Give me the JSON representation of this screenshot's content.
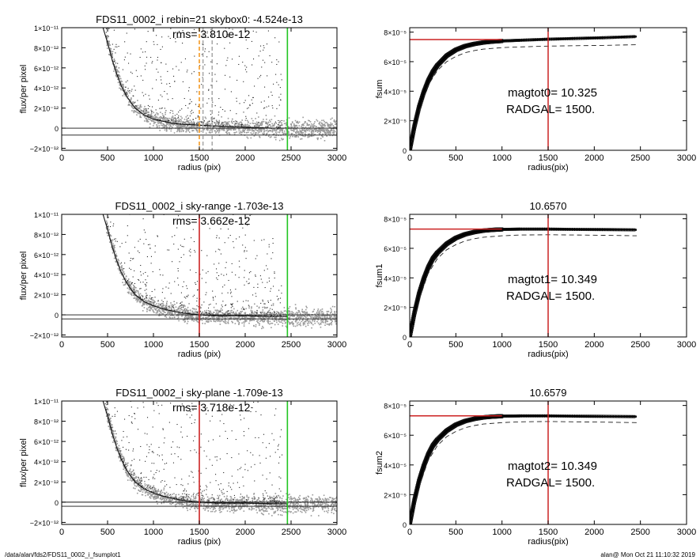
{
  "footer": {
    "path": "/data/alan/fds2/FDS11_0002_i_fsumplot1",
    "user_date": "alan@  Mon Oct 21 11:10:32 2019"
  },
  "chart_data": [
    {
      "type": "scatter",
      "title": "FDS11_0002_i rebin=21    skybox0: -4.524e-13",
      "annotation": "rms= 3.810e-12",
      "xlabel": "radius (pix)",
      "ylabel": "flux/per pixel",
      "xlim": [
        0,
        3000
      ],
      "ylim": [
        -2.2e-12,
        1e-11
      ],
      "x_ticks": [
        0,
        500,
        1000,
        1500,
        2000,
        2500,
        3000
      ],
      "y_tick_labels": [
        {
          "v": 1e-11,
          "t": "1×10⁻¹¹"
        },
        {
          "v": 8e-12,
          "t": "8×10⁻¹²"
        },
        {
          "v": 6e-12,
          "t": "6×10⁻¹²"
        },
        {
          "v": 4e-12,
          "t": "4×10⁻¹²"
        },
        {
          "v": 2e-12,
          "t": "2×10⁻¹²"
        },
        {
          "v": 0,
          "t": "0"
        },
        {
          "v": -2e-12,
          "t": "−2×10⁻¹²"
        }
      ],
      "profile_curve": {
        "x": [
          0,
          450,
          500,
          550,
          600,
          650,
          700,
          750,
          800,
          900,
          1000,
          1100,
          1200,
          1300,
          1500,
          1700,
          2000,
          2300,
          2460
        ],
        "y": [
          1e-11,
          1e-11,
          8.5e-12,
          6.8e-12,
          5.4e-12,
          4.2e-12,
          3.3e-12,
          2.6e-12,
          2e-12,
          1.3e-12,
          9e-13,
          7e-13,
          5e-13,
          4e-13,
          3e-13,
          2e-13,
          1e-13,
          0,
          0
        ]
      },
      "sky_levels": [
        0,
        -4.524e-13
      ],
      "vertical_lines": [
        {
          "x": 1500,
          "color": "#f59a23",
          "style": "dashed"
        },
        {
          "x": 1540,
          "color": "#aaaaaa",
          "style": "dashed"
        },
        {
          "x": 1640,
          "color": "#aaaaaa",
          "style": "dashed"
        },
        {
          "x": 2460,
          "color": "#21c521",
          "style": "solid"
        }
      ]
    },
    {
      "type": "line",
      "title": "",
      "xlabel": "radius(pix)",
      "ylabel": "fsum",
      "xlim": [
        0,
        3000
      ],
      "ylim": [
        0,
        8.3e-05
      ],
      "x_ticks": [
        0,
        500,
        1000,
        1500,
        2000,
        2500,
        3000
      ],
      "y_tick_labels": [
        {
          "v": 8e-05,
          "t": "8×10⁻⁵"
        },
        {
          "v": 6e-05,
          "t": "6×10⁻⁵"
        },
        {
          "v": 4e-05,
          "t": "4×10⁻⁵"
        },
        {
          "v": 2e-05,
          "t": "2×10⁻⁵"
        },
        {
          "v": 0,
          "t": "0"
        }
      ],
      "annotations": [
        "magtot0=  10.325",
        "RADGAL=   1500."
      ],
      "hline": {
        "y": 7.5e-05,
        "x_end": 1000,
        "color": "#cc2222"
      },
      "vline": {
        "x": 1500,
        "color": "#cc2222"
      },
      "curve": {
        "x": [
          0,
          50,
          100,
          150,
          200,
          250,
          300,
          400,
          500,
          600,
          700,
          800,
          900,
          1000,
          1200,
          1500,
          1800,
          2100,
          2460
        ],
        "y": [
          0,
          1.6e-05,
          2.9e-05,
          3.9e-05,
          4.7e-05,
          5.3e-05,
          5.75e-05,
          6.4e-05,
          6.8e-05,
          7.05e-05,
          7.2e-05,
          7.3e-05,
          7.36e-05,
          7.4e-05,
          7.45e-05,
          7.52e-05,
          7.57e-05,
          7.62e-05,
          7.7e-05
        ]
      },
      "dashed": {
        "x": [
          0,
          100,
          200,
          300,
          400,
          500,
          600,
          700,
          800,
          1000,
          1200,
          1500,
          1800,
          2100,
          2460
        ],
        "y": [
          0,
          2.6e-05,
          4.4e-05,
          5.4e-05,
          6e-05,
          6.35e-05,
          6.6e-05,
          6.75e-05,
          6.85e-05,
          6.95e-05,
          7e-05,
          7.05e-05,
          7.08e-05,
          7.1e-05,
          7.15e-05
        ]
      }
    },
    {
      "type": "scatter",
      "title": "FDS11_0002_i sky-range -1.703e-13",
      "annotation": "rms= 3.662e-12",
      "xlabel": "radius (pix)",
      "ylabel": "flux/per pixel",
      "xlim": [
        0,
        3000
      ],
      "ylim": [
        -2.2e-12,
        1e-11
      ],
      "x_ticks": [
        0,
        500,
        1000,
        1500,
        2000,
        2500,
        3000
      ],
      "y_tick_labels": [
        {
          "v": 1e-11,
          "t": "1×10⁻¹¹"
        },
        {
          "v": 8e-12,
          "t": "8×10⁻¹²"
        },
        {
          "v": 6e-12,
          "t": "6×10⁻¹²"
        },
        {
          "v": 4e-12,
          "t": "4×10⁻¹²"
        },
        {
          "v": 2e-12,
          "t": "2×10⁻¹²"
        },
        {
          "v": 0,
          "t": "0"
        },
        {
          "v": -2e-12,
          "t": "−2×10⁻¹²"
        }
      ],
      "profile_curve": {
        "x": [
          0,
          450,
          500,
          550,
          600,
          650,
          700,
          750,
          800,
          900,
          1000,
          1100,
          1200,
          1300,
          1500,
          1700,
          2000,
          2300,
          2460
        ],
        "y": [
          1e-11,
          1e-11,
          8.5e-12,
          6.8e-12,
          5.4e-12,
          4.2e-12,
          3.3e-12,
          2.6e-12,
          2e-12,
          1.3e-12,
          9e-13,
          6e-13,
          4e-13,
          2e-13,
          0,
          -1e-13,
          -1e-13,
          -1.5e-13,
          -1.7e-13
        ]
      },
      "sky_levels": [
        0,
        -1.703e-13
      ],
      "vertical_lines": [
        {
          "x": 1500,
          "color": "#cc2222",
          "style": "solid"
        },
        {
          "x": 2460,
          "color": "#21c521",
          "style": "solid"
        }
      ]
    },
    {
      "type": "line",
      "title": "10.6570",
      "xlabel": "radius(pix)",
      "ylabel": "fsum1",
      "xlim": [
        0,
        3000
      ],
      "ylim": [
        0,
        8.3e-05
      ],
      "x_ticks": [
        0,
        500,
        1000,
        1500,
        2000,
        2500,
        3000
      ],
      "y_tick_labels": [
        {
          "v": 8e-05,
          "t": "8×10⁻⁵"
        },
        {
          "v": 6e-05,
          "t": "6×10⁻⁵"
        },
        {
          "v": 4e-05,
          "t": "4×10⁻⁵"
        },
        {
          "v": 2e-05,
          "t": "2×10⁻⁵"
        },
        {
          "v": 0,
          "t": "0"
        }
      ],
      "annotations": [
        "magtot1=  10.349",
        "RADGAL=   1500."
      ],
      "hline": {
        "y": 7.3e-05,
        "x_end": 1000,
        "color": "#cc2222"
      },
      "vline": {
        "x": 1500,
        "color": "#cc2222"
      },
      "curve": {
        "x": [
          0,
          50,
          100,
          150,
          200,
          250,
          300,
          400,
          500,
          600,
          700,
          800,
          900,
          1000,
          1200,
          1500,
          1800,
          2100,
          2460
        ],
        "y": [
          0,
          1.6e-05,
          2.9e-05,
          3.9e-05,
          4.7e-05,
          5.3e-05,
          5.7e-05,
          6.3e-05,
          6.7e-05,
          6.95e-05,
          7.1e-05,
          7.2e-05,
          7.25e-05,
          7.28e-05,
          7.3e-05,
          7.3e-05,
          7.28e-05,
          7.27e-05,
          7.25e-05
        ]
      },
      "dashed": {
        "x": [
          0,
          100,
          200,
          300,
          400,
          500,
          600,
          700,
          800,
          1000,
          1200,
          1500,
          1800,
          2100,
          2460
        ],
        "y": [
          0,
          2.5e-05,
          4.3e-05,
          5.3e-05,
          5.9e-05,
          6.25e-05,
          6.5e-05,
          6.65e-05,
          6.75e-05,
          6.85e-05,
          6.9e-05,
          6.92e-05,
          6.9e-05,
          6.88e-05,
          6.85e-05
        ]
      }
    },
    {
      "type": "scatter",
      "title": "FDS11_0002_i sky-plane -1.709e-13",
      "annotation": "rms= 3.718e-12",
      "xlabel": "radius (pix)",
      "ylabel": "flux/per pixel",
      "xlim": [
        0,
        3000
      ],
      "ylim": [
        -2.2e-12,
        1e-11
      ],
      "x_ticks": [
        0,
        500,
        1000,
        1500,
        2000,
        2500,
        3000
      ],
      "y_tick_labels": [
        {
          "v": 1e-11,
          "t": "1×10⁻¹¹"
        },
        {
          "v": 8e-12,
          "t": "8×10⁻¹²"
        },
        {
          "v": 6e-12,
          "t": "6×10⁻¹²"
        },
        {
          "v": 4e-12,
          "t": "4×10⁻¹²"
        },
        {
          "v": 2e-12,
          "t": "2×10⁻¹²"
        },
        {
          "v": 0,
          "t": "0"
        },
        {
          "v": -2e-12,
          "t": "−2×10⁻¹²"
        }
      ],
      "profile_curve": {
        "x": [
          0,
          450,
          500,
          550,
          600,
          650,
          700,
          750,
          800,
          900,
          1000,
          1100,
          1200,
          1300,
          1500,
          1700,
          2000,
          2300,
          2460
        ],
        "y": [
          1e-11,
          1e-11,
          8.5e-12,
          6.8e-12,
          5.4e-12,
          4.2e-12,
          3.3e-12,
          2.6e-12,
          2e-12,
          1.3e-12,
          9e-13,
          6e-13,
          4e-13,
          2e-13,
          0,
          -1e-13,
          -1e-13,
          -1.5e-13,
          -1.7e-13
        ]
      },
      "sky_levels": [
        0,
        -1.709e-13
      ],
      "vertical_lines": [
        {
          "x": 1500,
          "color": "#cc2222",
          "style": "solid"
        },
        {
          "x": 2460,
          "color": "#21c521",
          "style": "solid"
        }
      ]
    },
    {
      "type": "line",
      "title": "10.6579",
      "xlabel": "radius(pix)",
      "ylabel": "fsum2",
      "xlim": [
        0,
        3000
      ],
      "ylim": [
        0,
        8.3e-05
      ],
      "x_ticks": [
        0,
        500,
        1000,
        1500,
        2000,
        2500,
        3000
      ],
      "y_tick_labels": [
        {
          "v": 8e-05,
          "t": "8×10⁻⁵"
        },
        {
          "v": 6e-05,
          "t": "6×10⁻⁵"
        },
        {
          "v": 4e-05,
          "t": "4×10⁻⁵"
        },
        {
          "v": 2e-05,
          "t": "2×10⁻⁵"
        },
        {
          "v": 0,
          "t": "0"
        }
      ],
      "annotations": [
        "magtot2=  10.349",
        "RADGAL=   1500."
      ],
      "hline": {
        "y": 7.3e-05,
        "x_end": 1000,
        "color": "#cc2222"
      },
      "vline": {
        "x": 1500,
        "color": "#cc2222"
      },
      "curve": {
        "x": [
          0,
          50,
          100,
          150,
          200,
          250,
          300,
          400,
          500,
          600,
          700,
          800,
          900,
          1000,
          1200,
          1500,
          1800,
          2100,
          2460
        ],
        "y": [
          0,
          1.6e-05,
          2.9e-05,
          3.9e-05,
          4.7e-05,
          5.3e-05,
          5.7e-05,
          6.3e-05,
          6.7e-05,
          6.95e-05,
          7.1e-05,
          7.2e-05,
          7.25e-05,
          7.28e-05,
          7.3e-05,
          7.3e-05,
          7.28e-05,
          7.27e-05,
          7.25e-05
        ]
      },
      "dashed": {
        "x": [
          0,
          100,
          200,
          300,
          400,
          500,
          600,
          700,
          800,
          1000,
          1200,
          1500,
          1800,
          2100,
          2460
        ],
        "y": [
          0,
          2.5e-05,
          4.3e-05,
          5.3e-05,
          5.9e-05,
          6.25e-05,
          6.5e-05,
          6.65e-05,
          6.75e-05,
          6.85e-05,
          6.9e-05,
          6.92e-05,
          6.9e-05,
          6.88e-05,
          6.85e-05
        ]
      }
    }
  ]
}
